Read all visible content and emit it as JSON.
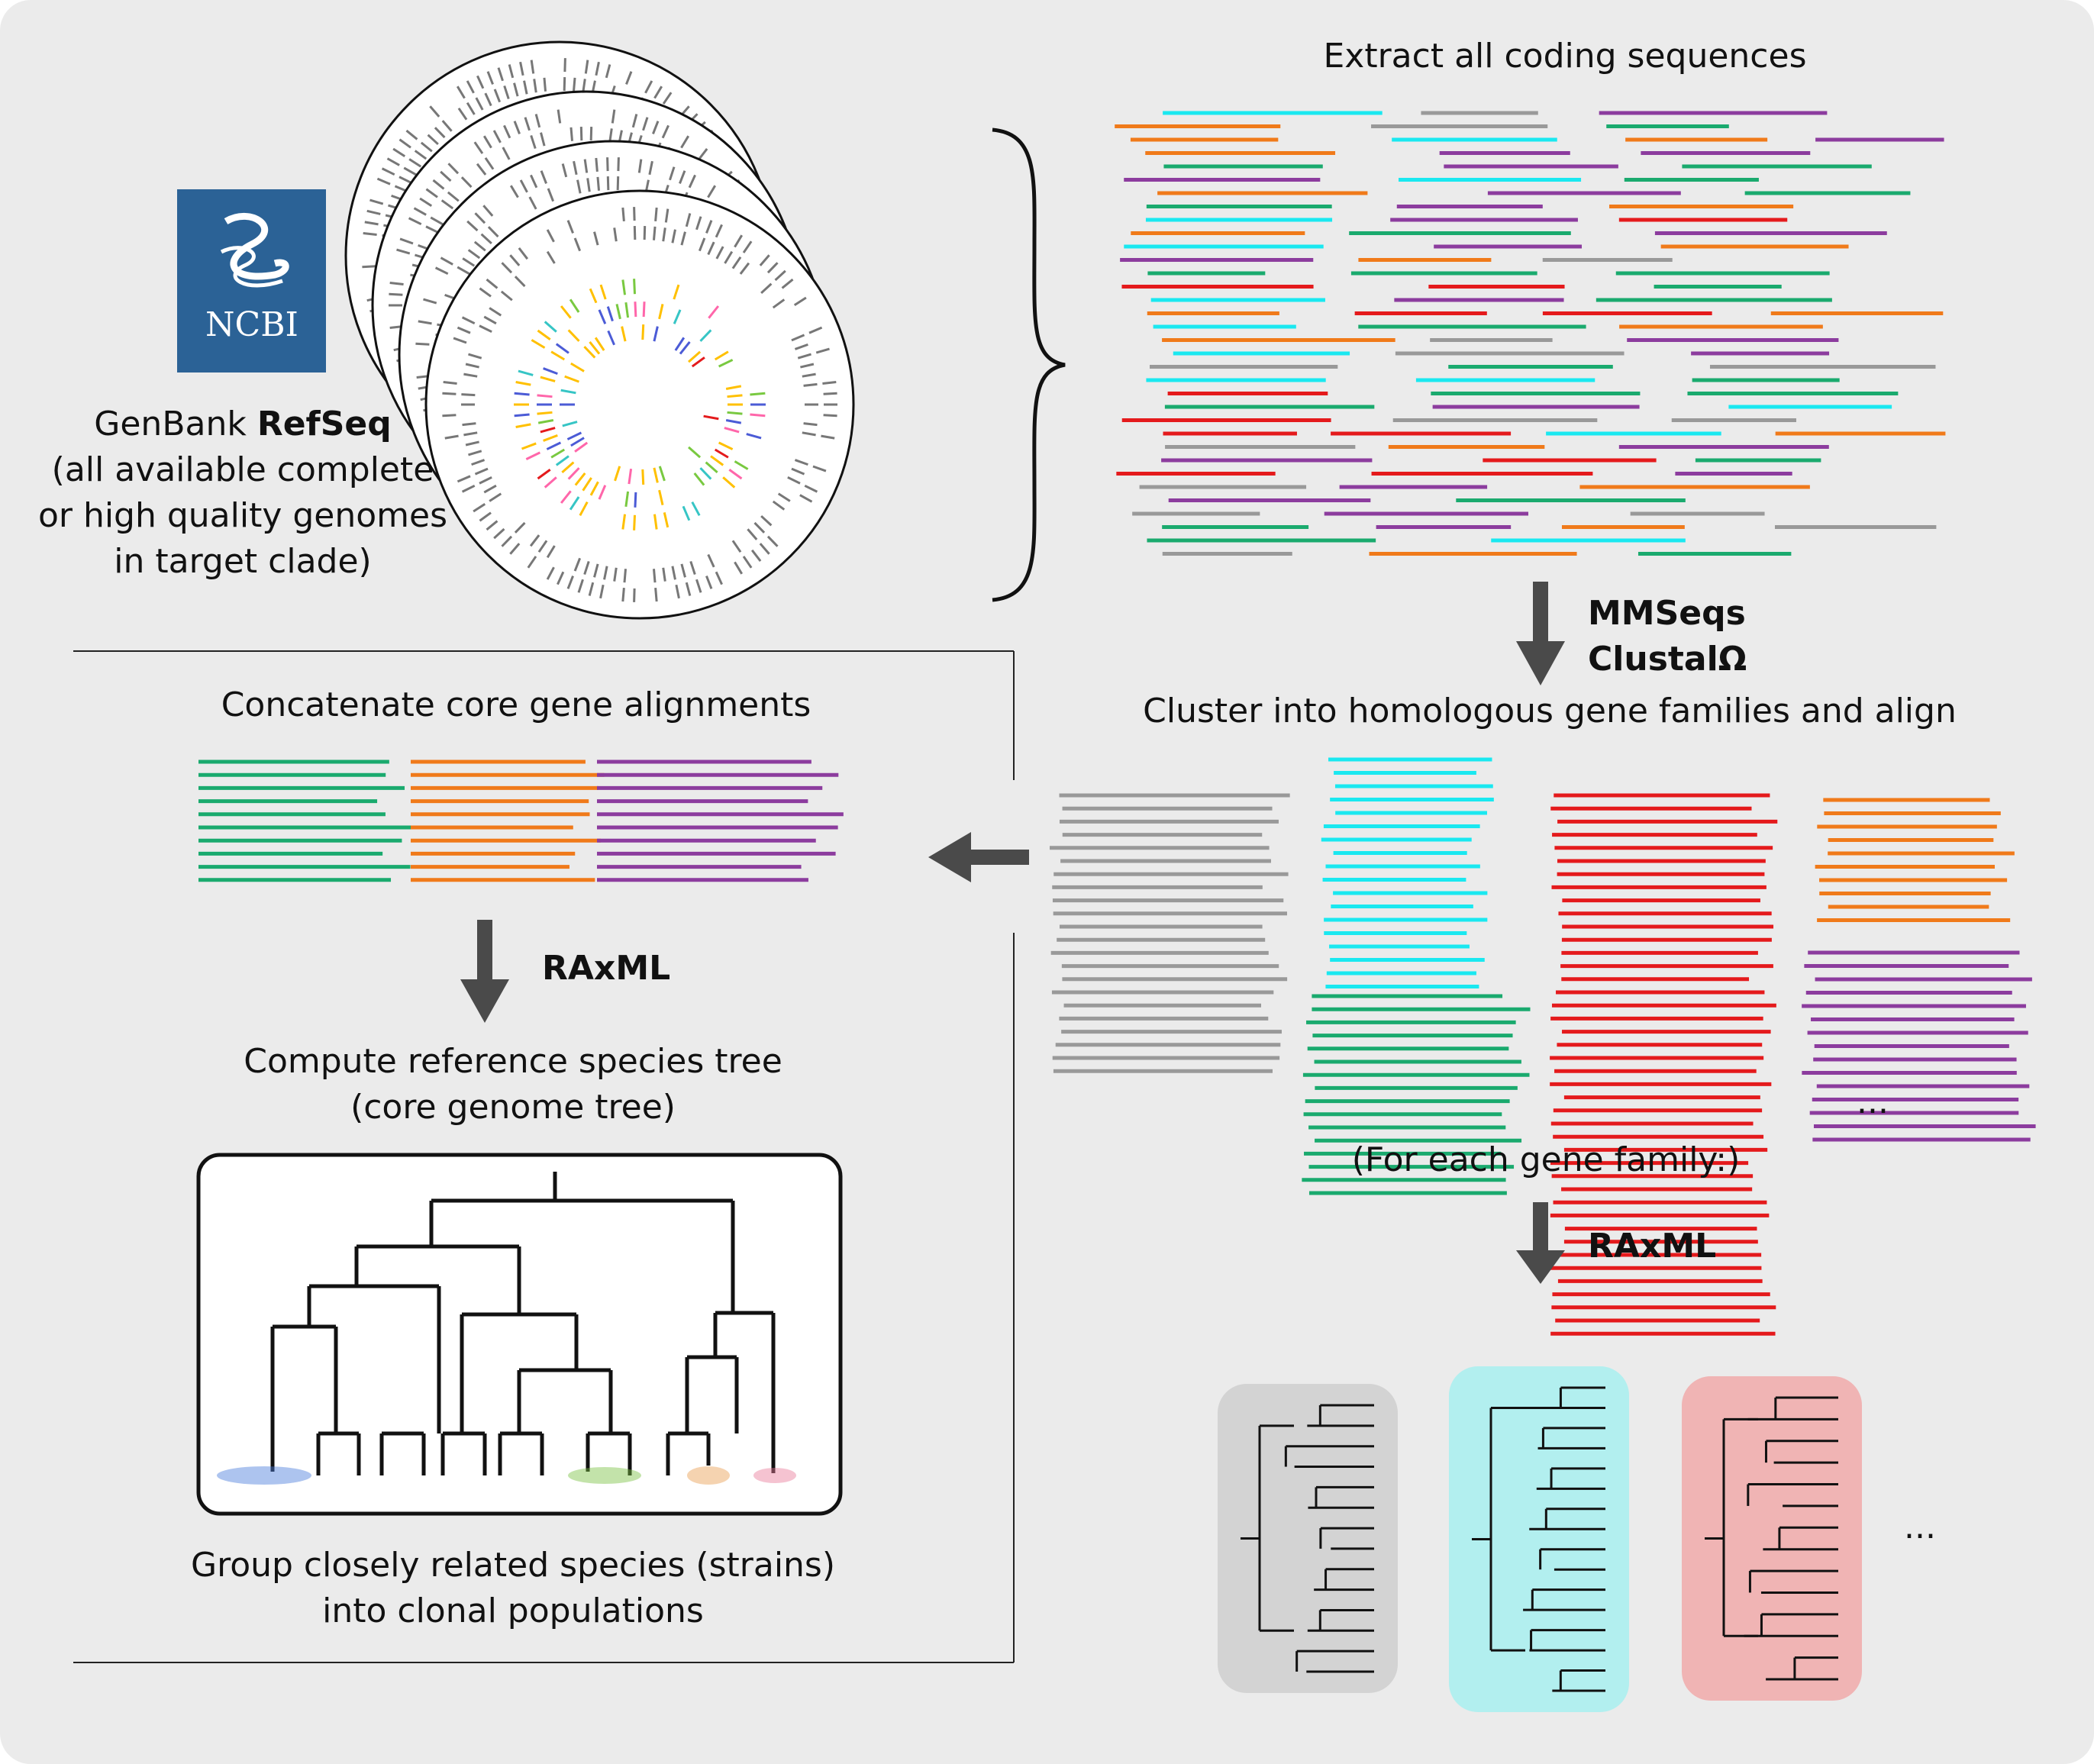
{
  "ncbi_logo": {
    "text": "NCBI",
    "color": "#2b6296"
  },
  "genbank": {
    "prefix": "GenBank ",
    "bold": "RefSeq",
    "lines": [
      "(all available complete",
      "or high quality genomes",
      "in target clade)"
    ]
  },
  "extract_label": "Extract all coding sequences",
  "mmseqs_label": "MMSeqs",
  "clustal_label": "ClustalΩ",
  "cluster_label": "Cluster into homologous gene families and align",
  "concat_label": "Concatenate core gene alignments",
  "raxml_left_label": "RAxML",
  "raxml_right_label": "RAxML",
  "compute_lines": [
    "Compute reference species tree",
    "(core genome tree)"
  ],
  "group_lines": [
    "Group closely related species (strains)",
    "into clonal populations"
  ],
  "for_each_label": "(For each gene family:)",
  "ellipsis_families": "...",
  "ellipsis_trees": "...",
  "colors": {
    "green": "#1aaa6e",
    "orange": "#f07a1a",
    "purple": "#8c3c9e",
    "red": "#e41a1c",
    "cyan": "#1ae8f0",
    "gray": "#999999",
    "arrow": "#4a4a4a",
    "background": "#ebebeb",
    "tree_box_gray": "#d3d3d3",
    "tree_box_cyan": "#b2efef",
    "tree_box_red": "#f0b4b4"
  }
}
